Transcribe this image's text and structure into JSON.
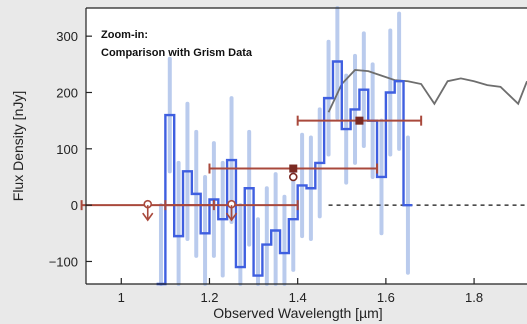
{
  "chart_data": {
    "type": "line",
    "annotation_lines": [
      "Zoom-in:",
      "Comparison with Grism Data"
    ],
    "xlabel": "Observed Wavelength [µm]",
    "ylabel": "Flux Density [nJy]",
    "xlim": [
      0.92,
      1.92
    ],
    "ylim": [
      -140,
      350
    ],
    "xticks": [
      1,
      1.2,
      1.4,
      1.6,
      1.8
    ],
    "xtick_labels": [
      "1",
      "1.2",
      "1.4",
      "1.6",
      "1.8"
    ],
    "yticks": [
      -100,
      0,
      100,
      200,
      300
    ],
    "ytick_labels": [
      "−100",
      "0",
      "100",
      "200",
      "300"
    ],
    "grid": false,
    "zero_line": "dashed",
    "colors": {
      "grism": "#3f5fe0",
      "grism_errors": "#aec3ea",
      "model": "#6e6e6e",
      "photometry": "#a9493c",
      "photometry_marker": "#7a2a22",
      "background": "#ffffff"
    },
    "series": [
      {
        "type": "step",
        "x": [
          1.09,
          1.11,
          1.13,
          1.15,
          1.17,
          1.19,
          1.21,
          1.23,
          1.25,
          1.27,
          1.29,
          1.31,
          1.33,
          1.35,
          1.37,
          1.39,
          1.41,
          1.43,
          1.45,
          1.47,
          1.49,
          1.51,
          1.53,
          1.55,
          1.57,
          1.59,
          1.61,
          1.63,
          1.65
        ],
        "y": [
          -150,
          160,
          -55,
          60,
          20,
          -50,
          10,
          -25,
          80,
          -110,
          30,
          -125,
          -70,
          -45,
          -85,
          -25,
          35,
          30,
          75,
          190,
          255,
          135,
          170,
          205,
          150,
          50,
          200,
          220,
          0
        ],
        "yerr": [
          150,
          100,
          130,
          120,
          110,
          100,
          100,
          100,
          110,
          110,
          100,
          100,
          100,
          100,
          100,
          90,
          90,
          90,
          95,
          100,
          100,
          95,
          95,
          100,
          100,
          100,
          110,
          120,
          120
        ]
      },
      {
        "type": "line",
        "x": [
          1.47,
          1.5,
          1.53,
          1.56,
          1.59,
          1.62,
          1.65,
          1.68,
          1.71,
          1.74,
          1.77,
          1.8,
          1.83,
          1.86,
          1.88,
          1.9,
          1.92
        ],
        "y": [
          165,
          215,
          240,
          238,
          230,
          222,
          220,
          215,
          180,
          220,
          225,
          220,
          213,
          210,
          195,
          180,
          220
        ]
      },
      {
        "type": "errorbar",
        "markers": [
          {
            "x": 1.06,
            "y": 0,
            "xerr": 0.15,
            "upper_limit": true
          },
          {
            "x": 1.25,
            "y": 0,
            "xerr": 0.15,
            "upper_limit": true
          },
          {
            "x": 1.39,
            "y": 65,
            "xerr": 0.19,
            "upper_limit": false
          },
          {
            "x": 1.39,
            "y": 50,
            "xerr": 0,
            "upper_limit": false
          },
          {
            "x": 1.54,
            "y": 150,
            "xerr": 0.14,
            "upper_limit": false
          }
        ]
      }
    ]
  }
}
